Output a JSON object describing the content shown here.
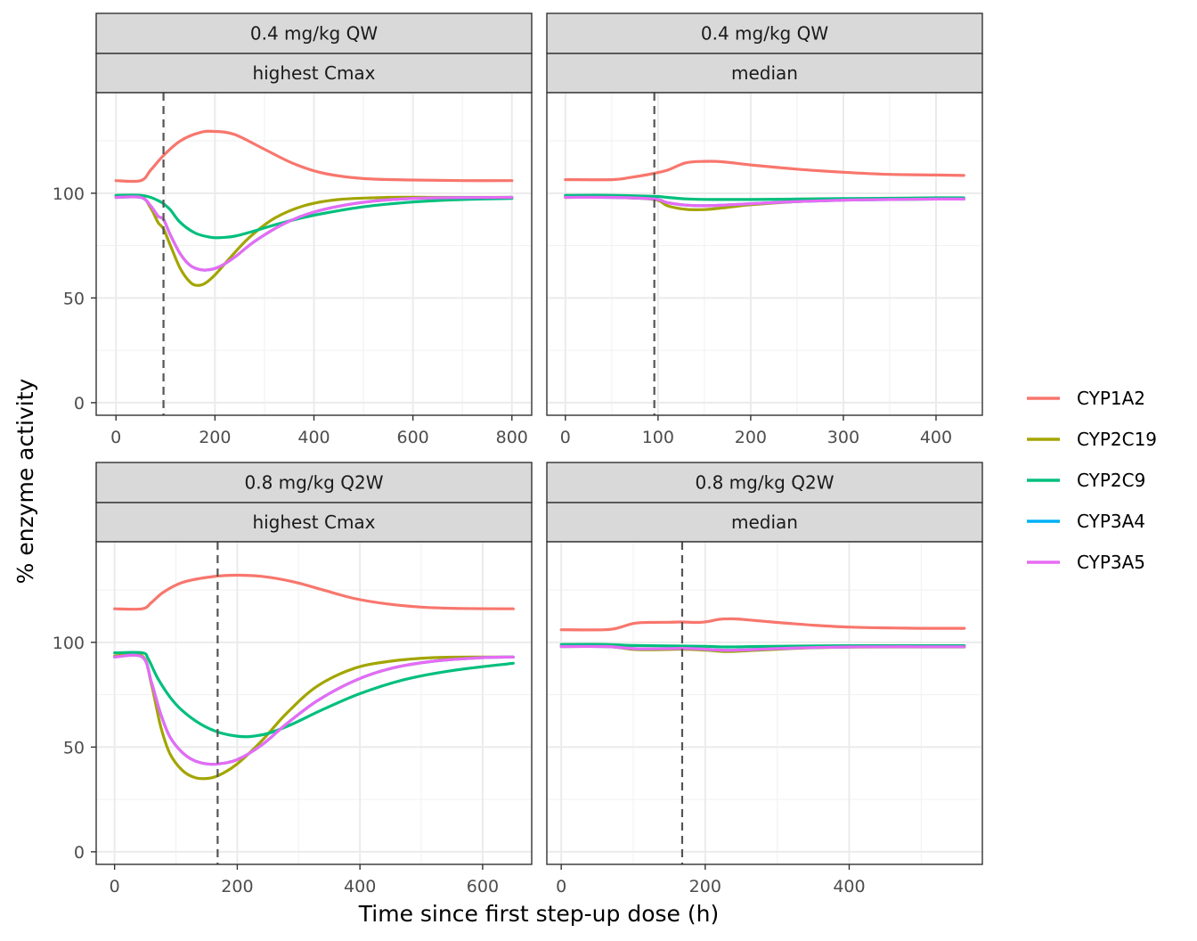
{
  "chart_data": {
    "type": "line",
    "layout": "facet_grid_2x2",
    "xlabel": "Time since first step-up dose (h)",
    "ylabel": "% enzyme activity",
    "ylim": [
      -6,
      148
    ],
    "yticks": [
      0,
      50,
      100
    ],
    "legend": {
      "position": "right",
      "entries": [
        {
          "name": "CYP1A2",
          "color": "#F8766D"
        },
        {
          "name": "CYP2C19",
          "color": "#A3A500"
        },
        {
          "name": "CYP2C9",
          "color": "#00BF7D"
        },
        {
          "name": "CYP3A4",
          "color": "#00B0F6"
        },
        {
          "name": "CYP3A5",
          "color": "#E76BF3"
        }
      ]
    },
    "panels": [
      {
        "strip_top": "0.4 mg/kg QW",
        "strip_bottom": "highest Cmax",
        "xlim": [
          -40,
          840
        ],
        "xticks": [
          0,
          200,
          400,
          600,
          800
        ],
        "vline_x": 96,
        "series": [
          {
            "name": "CYP1A2",
            "x": [
              0,
              50,
              70,
              96,
              130,
              170,
              200,
              240,
              300,
              360,
              420,
              500,
              600,
              700,
              800
            ],
            "y": [
              106,
              106,
              111,
              118,
              125,
              129,
              129.5,
              128,
              121,
              114,
              109.5,
              107,
              106.3,
              106,
              106
            ]
          },
          {
            "name": "CYP2C19",
            "x": [
              0,
              50,
              70,
              85,
              96,
              110,
              130,
              150,
              165,
              180,
              200,
              230,
              270,
              320,
              380,
              450,
              550,
              650,
              800
            ],
            "y": [
              98.5,
              98.5,
              93,
              86,
              83,
              75,
              64,
              57.5,
              56,
              57,
              61,
              69,
              79,
              88,
              94,
              97,
              98,
              98,
              98
            ]
          },
          {
            "name": "CYP2C9",
            "x": [
              0,
              50,
              70,
              85,
              96,
              110,
              130,
              160,
              190,
              210,
              240,
              280,
              330,
              400,
              500,
              600,
              700,
              800
            ],
            "y": [
              99,
              99,
              98,
              96.5,
              95,
              92,
              86,
              81,
              79,
              78.8,
              79.5,
              82,
              85.5,
              89.5,
              93.5,
              95.8,
              97,
              97.5
            ]
          },
          {
            "name": "CYP3A4",
            "x": [
              0,
              50,
              70,
              85,
              96,
              110,
              130,
              150,
              170,
              190,
              210,
              240,
              280,
              340,
              400,
              480,
              560,
              650,
              800
            ],
            "y": [
              98,
              98,
              94,
              89,
              87.5,
              80,
              71,
              65.5,
              63.5,
              63.5,
              65,
              69.5,
              77,
              85.5,
              91,
              95,
              97,
              97.8,
              98
            ]
          },
          {
            "name": "CYP3A5",
            "x": [
              0,
              50,
              70,
              85,
              96,
              110,
              130,
              150,
              170,
              190,
              210,
              240,
              280,
              340,
              400,
              480,
              560,
              650,
              800
            ],
            "y": [
              98,
              98,
              94,
              89,
              87.5,
              80,
              71,
              65.5,
              63.5,
              63.5,
              65,
              69.5,
              77,
              85.5,
              91,
              95,
              97,
              97.8,
              98
            ]
          }
        ]
      },
      {
        "strip_top": "0.4 mg/kg QW",
        "strip_bottom": "median",
        "xlim": [
          -20,
          450
        ],
        "xticks": [
          0,
          100,
          200,
          300,
          400
        ],
        "vline_x": 96,
        "series": [
          {
            "name": "CYP1A2",
            "x": [
              0,
              50,
              70,
              96,
              110,
              130,
              150,
              170,
              200,
              250,
              300,
              350,
              400,
              430
            ],
            "y": [
              106.5,
              106.5,
              107.5,
              109.5,
              111,
              114.5,
              115.2,
              115,
              113.5,
              111.5,
              110,
              109,
              108.7,
              108.5
            ]
          },
          {
            "name": "CYP2C19",
            "x": [
              0,
              50,
              96,
              110,
              130,
              150,
              170,
              200,
              250,
              300,
              350,
              400,
              430
            ],
            "y": [
              98,
              98,
              97,
              94,
              92.3,
              92.2,
              93,
              94.5,
              96,
              96.8,
              97,
              97.2,
              97.2
            ]
          },
          {
            "name": "CYP2C9",
            "x": [
              0,
              50,
              96,
              110,
              130,
              160,
              200,
              250,
              300,
              350,
              400,
              430
            ],
            "y": [
              99,
              99,
              98.5,
              98,
              97.3,
              97,
              97,
              97.2,
              97.4,
              97.6,
              97.8,
              97.8
            ]
          },
          {
            "name": "CYP3A4",
            "x": [
              0,
              50,
              96,
              110,
              130,
              150,
              170,
              200,
              250,
              300,
              350,
              400,
              430
            ],
            "y": [
              98,
              98,
              97.2,
              95.5,
              94.3,
              94,
              94.3,
              95,
              96,
              96.7,
              97,
              97.2,
              97.2
            ]
          },
          {
            "name": "CYP3A5",
            "x": [
              0,
              50,
              96,
              110,
              130,
              150,
              170,
              200,
              250,
              300,
              350,
              400,
              430
            ],
            "y": [
              98,
              98,
              97.2,
              95.5,
              94.3,
              94,
              94.3,
              95,
              96,
              96.7,
              97,
              97.2,
              97.2
            ]
          }
        ]
      },
      {
        "strip_top": "0.8 mg/kg Q2W",
        "strip_bottom": "highest Cmax",
        "xlim": [
          -30,
          680
        ],
        "xticks": [
          0,
          200,
          400,
          600
        ],
        "vline_x": 168,
        "series": [
          {
            "name": "CYP1A2",
            "x": [
              0,
              45,
              60,
              80,
              110,
              150,
              190,
              240,
              290,
              340,
              390,
              440,
              500,
              560,
              650
            ],
            "y": [
              116,
              116,
              119,
              124,
              128.5,
              131,
              132,
              131.5,
              129,
              125,
              121,
              118.5,
              116.8,
              116.2,
              116
            ]
          },
          {
            "name": "CYP2C19",
            "x": [
              0,
              45,
              60,
              75,
              90,
              110,
              130,
              150,
              170,
              200,
              240,
              280,
              330,
              390,
              450,
              520,
              600,
              650
            ],
            "y": [
              93.5,
              93.5,
              80,
              60,
              47,
              39,
              35.5,
              35,
              36.5,
              42,
              53,
              66,
              79,
              87.5,
              91,
              92.7,
              93,
              93
            ]
          },
          {
            "name": "CYP2C9",
            "x": [
              0,
              45,
              55,
              70,
              90,
              110,
              140,
              170,
              200,
              220,
              250,
              290,
              340,
              400,
              470,
              550,
              650
            ],
            "y": [
              95,
              95,
              92,
              83,
              74,
              67.5,
              61,
              57,
              55.2,
              55,
              56.5,
              61,
              68,
              75.5,
              82,
              86.5,
              90
            ]
          },
          {
            "name": "CYP3A4",
            "x": [
              0,
              45,
              60,
              75,
              90,
              110,
              130,
              150,
              170,
              200,
              240,
              280,
              330,
              390,
              450,
              520,
              600,
              650
            ],
            "y": [
              93,
              93,
              81,
              66,
              55,
              47.5,
              43.5,
              42,
              42,
              44,
              51,
              61,
              72,
              81.5,
              87.5,
              91,
              92.7,
              93
            ]
          },
          {
            "name": "CYP3A5",
            "x": [
              0,
              45,
              60,
              75,
              90,
              110,
              130,
              150,
              170,
              200,
              240,
              280,
              330,
              390,
              450,
              520,
              600,
              650
            ],
            "y": [
              93,
              93,
              81,
              66,
              55,
              47.5,
              43.5,
              42,
              42,
              44,
              51,
              61,
              72,
              81.5,
              87.5,
              91,
              92.7,
              93
            ]
          }
        ]
      },
      {
        "strip_top": "0.8 mg/kg Q2W",
        "strip_bottom": "median",
        "xlim": [
          -20,
          585
        ],
        "xticks": [
          0,
          200,
          400
        ],
        "vline_x": 168,
        "series": [
          {
            "name": "CYP1A2",
            "x": [
              0,
              60,
              80,
              100,
              120,
              150,
              168,
              190,
              205,
              220,
              240,
              260,
              300,
              350,
              400,
              450,
              500,
              560
            ],
            "y": [
              106,
              106,
              107,
              109,
              109.5,
              109.6,
              109.7,
              109.5,
              110,
              111,
              111.2,
              110.7,
              109.5,
              108.2,
              107.3,
              106.9,
              106.7,
              106.7
            ]
          },
          {
            "name": "CYP2C19",
            "x": [
              0,
              60,
              80,
              100,
              120,
              150,
              168,
              190,
              210,
              230,
              260,
              300,
              350,
              400,
              450,
              500,
              560
            ],
            "y": [
              98,
              98,
              97.5,
              96.6,
              96.5,
              96.6,
              96.7,
              96.5,
              96,
              95.6,
              96,
              96.7,
              97.4,
              97.7,
              97.8,
              97.8,
              97.8
            ]
          },
          {
            "name": "CYP2C9",
            "x": [
              0,
              60,
              100,
              150,
              200,
              230,
              270,
              320,
              400,
              480,
              560
            ],
            "y": [
              99,
              99,
              98.5,
              98.3,
              98.1,
              97.8,
              98,
              98.2,
              98.4,
              98.4,
              98.4
            ]
          },
          {
            "name": "CYP3A4",
            "x": [
              0,
              60,
              80,
              100,
              120,
              150,
              168,
              190,
              210,
              230,
              260,
              300,
              350,
              400,
              450,
              500,
              560
            ],
            "y": [
              98,
              98,
              97.6,
              97,
              96.9,
              97,
              97.1,
              96.9,
              96.5,
              96.2,
              96.5,
              97,
              97.5,
              97.8,
              97.9,
              97.9,
              97.9
            ]
          },
          {
            "name": "CYP3A5",
            "x": [
              0,
              60,
              80,
              100,
              120,
              150,
              168,
              190,
              210,
              230,
              260,
              300,
              350,
              400,
              450,
              500,
              560
            ],
            "y": [
              98,
              98,
              97.6,
              97,
              96.9,
              97,
              97.1,
              96.9,
              96.5,
              96.2,
              96.5,
              97,
              97.5,
              97.8,
              97.9,
              97.9,
              97.9
            ]
          }
        ]
      }
    ]
  }
}
